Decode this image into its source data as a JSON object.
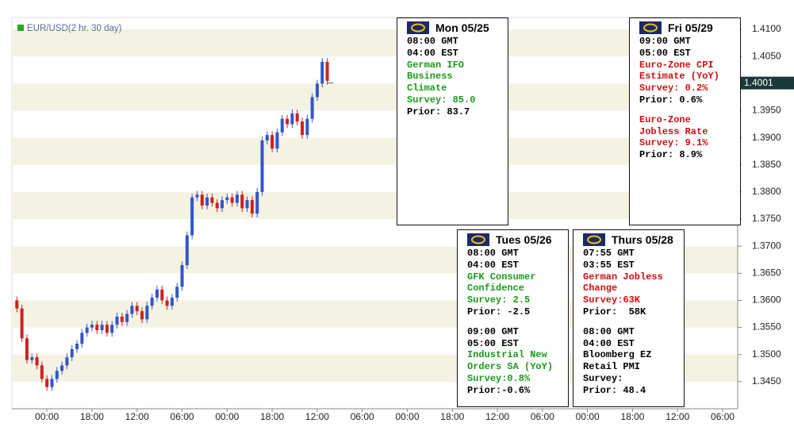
{
  "chart_data": {
    "type": "candlestick",
    "legend": "EUR/USD(2 hr. 30 day)",
    "legend_color": "#22aa22",
    "up_color": "#3355cc",
    "down_color": "#cc2222",
    "band_color": "#f4f2e2",
    "open": [
      1.36,
      1.3585,
      1.353,
      1.349,
      1.3495,
      1.348,
      1.3455,
      1.344,
      1.3455,
      1.347,
      1.348,
      1.3495,
      1.351,
      1.352,
      1.354,
      1.355,
      1.3555,
      1.3545,
      1.3555,
      1.354,
      1.3555,
      1.357,
      1.356,
      1.3575,
      1.359,
      1.358,
      1.3565,
      1.359,
      1.3605,
      1.362,
      1.36,
      1.359,
      1.3605,
      1.3625,
      1.3665,
      1.372,
      1.379,
      1.3795,
      1.3775,
      1.379,
      1.378,
      1.377,
      1.3785,
      1.379,
      1.378,
      1.3795,
      1.377,
      1.3785,
      1.376,
      1.38,
      1.3895,
      1.3905,
      1.388,
      1.391,
      1.3935,
      1.3925,
      1.3945,
      1.393,
      1.3905,
      1.3935,
      1.3975,
      1.4,
      1.404
    ],
    "high": [
      1.3607,
      1.3592,
      1.3537,
      1.3502,
      1.3502,
      1.3487,
      1.3462,
      1.3462,
      1.3477,
      1.3487,
      1.3502,
      1.3517,
      1.3527,
      1.3547,
      1.3557,
      1.3562,
      1.3562,
      1.3562,
      1.3562,
      1.3562,
      1.3577,
      1.3577,
      1.3582,
      1.3597,
      1.3597,
      1.3587,
      1.3597,
      1.3612,
      1.3627,
      1.3627,
      1.3607,
      1.3612,
      1.3632,
      1.3672,
      1.3727,
      1.3797,
      1.3802,
      1.3802,
      1.3797,
      1.3797,
      1.3787,
      1.3792,
      1.3797,
      1.3797,
      1.3802,
      1.3802,
      1.3792,
      1.3792,
      1.3807,
      1.3902,
      1.3912,
      1.3912,
      1.3917,
      1.3942,
      1.3942,
      1.3952,
      1.3952,
      1.3937,
      1.3942,
      1.3982,
      1.4007,
      1.4047,
      1.4047
    ],
    "low": [
      1.3578,
      1.3523,
      1.3483,
      1.3483,
      1.3473,
      1.3448,
      1.3433,
      1.3433,
      1.3448,
      1.3463,
      1.3473,
      1.3488,
      1.3503,
      1.3513,
      1.3533,
      1.3543,
      1.3538,
      1.3538,
      1.3533,
      1.3533,
      1.3548,
      1.3553,
      1.3553,
      1.3568,
      1.3573,
      1.3558,
      1.3558,
      1.3583,
      1.3598,
      1.3593,
      1.3583,
      1.3583,
      1.3598,
      1.3618,
      1.3658,
      1.3713,
      1.3783,
      1.3768,
      1.3768,
      1.3773,
      1.3763,
      1.3763,
      1.3778,
      1.3773,
      1.3773,
      1.3763,
      1.3763,
      1.3753,
      1.3753,
      1.3793,
      1.3888,
      1.3873,
      1.3873,
      1.3903,
      1.3918,
      1.3918,
      1.3923,
      1.3898,
      1.3898,
      1.3928,
      1.3968,
      1.3993,
      1.3998
    ],
    "close": [
      1.3585,
      1.353,
      1.349,
      1.3495,
      1.348,
      1.3455,
      1.344,
      1.3455,
      1.347,
      1.348,
      1.3495,
      1.351,
      1.352,
      1.354,
      1.355,
      1.3555,
      1.3545,
      1.3555,
      1.354,
      1.3555,
      1.357,
      1.356,
      1.3575,
      1.359,
      1.358,
      1.3565,
      1.359,
      1.3605,
      1.362,
      1.36,
      1.359,
      1.3605,
      1.3625,
      1.3665,
      1.372,
      1.379,
      1.3795,
      1.3775,
      1.379,
      1.378,
      1.377,
      1.3785,
      1.379,
      1.378,
      1.3795,
      1.377,
      1.3785,
      1.376,
      1.38,
      1.3895,
      1.3905,
      1.388,
      1.391,
      1.3935,
      1.3925,
      1.3945,
      1.393,
      1.3905,
      1.3935,
      1.3975,
      1.4,
      1.404,
      1.4005
    ],
    "last_price": 1.4001,
    "xlim": [
      -1,
      144
    ],
    "xticks": [
      {
        "value": 6,
        "label": "00:00"
      },
      {
        "value": 15,
        "label": "18:00"
      },
      {
        "value": 24,
        "label": "12:00"
      },
      {
        "value": 33,
        "label": "06:00"
      },
      {
        "value": 42,
        "label": "00:00"
      },
      {
        "value": 51,
        "label": "18:00"
      },
      {
        "value": 60,
        "label": "12:00"
      },
      {
        "value": 69,
        "label": "06:00"
      },
      {
        "value": 78,
        "label": "00:00"
      },
      {
        "value": 87,
        "label": "18:00"
      },
      {
        "value": 96,
        "label": "12:00"
      },
      {
        "value": 105,
        "label": "06:00"
      },
      {
        "value": 114,
        "label": "00:00"
      },
      {
        "value": 123,
        "label": "18:00"
      },
      {
        "value": 132,
        "label": "12:00"
      },
      {
        "value": 141,
        "label": "06:00"
      }
    ],
    "ylim": [
      1.34,
      1.4122
    ],
    "yticks": [
      {
        "value": 1.41,
        "label": "1.4100"
      },
      {
        "value": 1.405,
        "label": "1.4050"
      },
      {
        "value": 1.4,
        "label": "1.4000"
      },
      {
        "value": 1.395,
        "label": "1.3950"
      },
      {
        "value": 1.39,
        "label": "1.3900"
      },
      {
        "value": 1.385,
        "label": "1.3850"
      },
      {
        "value": 1.38,
        "label": "1.3800"
      },
      {
        "value": 1.375,
        "label": "1.3750"
      },
      {
        "value": 1.37,
        "label": "1.3700"
      },
      {
        "value": 1.365,
        "label": "1.3650"
      },
      {
        "value": 1.36,
        "label": "1.3600"
      },
      {
        "value": 1.355,
        "label": "1.3550"
      },
      {
        "value": 1.35,
        "label": "1.3500"
      },
      {
        "value": 1.345,
        "label": "1.3450"
      }
    ]
  },
  "events": [
    {
      "date": "Mon 05/25",
      "blocks": [
        [
          {
            "text": "08:00 GMT",
            "color": "#000000"
          },
          {
            "text": "04:00 EST",
            "color": "#000000"
          },
          {
            "text": "German IFO",
            "color": "#1a9a1a"
          },
          {
            "text": "Business",
            "color": "#1a9a1a"
          },
          {
            "text": "Climate",
            "color": "#1a9a1a"
          },
          {
            "text": "Survey: 85.0",
            "color": "#1a9a1a"
          },
          {
            "text": "Prior: 83.7",
            "color": "#000000"
          }
        ]
      ]
    },
    {
      "date": "Fri 05/29",
      "blocks": [
        [
          {
            "text": "09:00 GMT",
            "color": "#000000"
          },
          {
            "text": "05:00 EST",
            "color": "#000000"
          },
          {
            "text": "Euro-Zone CPI",
            "color": "#cc1111"
          },
          {
            "text": "Estimate (YoY)",
            "color": "#cc1111"
          },
          {
            "text": "Survey: 0.2%",
            "color": "#cc1111"
          },
          {
            "text": "Prior: 0.6%",
            "color": "#000000"
          }
        ],
        [
          {
            "text": "Euro-Zone",
            "color": "#cc1111"
          },
          {
            "text": "Jobless Rate",
            "color": "#cc1111"
          },
          {
            "text": "Survey: 9.1%",
            "color": "#cc1111"
          },
          {
            "text": "Prior: 8.9%",
            "color": "#000000"
          }
        ]
      ]
    },
    {
      "date": "Tues 05/26",
      "blocks": [
        [
          {
            "text": "08:00 GMT",
            "color": "#000000"
          },
          {
            "text": "04:00 EST",
            "color": "#000000"
          },
          {
            "text": "GFK Consumer",
            "color": "#1a9a1a"
          },
          {
            "text": "Confidence",
            "color": "#1a9a1a"
          },
          {
            "text": "Survey: 2.5",
            "color": "#1a9a1a"
          },
          {
            "text": "Prior: -2.5",
            "color": "#000000"
          }
        ],
        [
          {
            "text": "09:00 GMT",
            "color": "#000000"
          },
          {
            "text": "05:00 EST",
            "color": "#000000"
          },
          {
            "text": "Industrial New",
            "color": "#1a9a1a"
          },
          {
            "text": "Orders SA (YoY)",
            "color": "#1a9a1a"
          },
          {
            "text": "Survey:0.8%",
            "color": "#1a9a1a"
          },
          {
            "text": "Prior:-0.6%",
            "color": "#000000"
          }
        ]
      ]
    },
    {
      "date": "Thurs 05/28",
      "blocks": [
        [
          {
            "text": "07:55 GMT",
            "color": "#000000"
          },
          {
            "text": "03:55 EST",
            "color": "#000000"
          },
          {
            "text": "German Jobless",
            "color": "#cc1111"
          },
          {
            "text": "Change",
            "color": "#cc1111"
          },
          {
            "text": "Survey:63K",
            "color": "#cc1111"
          },
          {
            "text": "Prior:  58K",
            "color": "#000000"
          }
        ],
        [
          {
            "text": "08:00 GMT",
            "color": "#000000"
          },
          {
            "text": "04:00 EST",
            "color": "#000000"
          },
          {
            "text": "Bloomberg EZ",
            "color": "#000000"
          },
          {
            "text": "Retail PMI",
            "color": "#000000"
          },
          {
            "text": "Survey:",
            "color": "#000000"
          },
          {
            "text": "Prior: 48.4",
            "color": "#000000"
          }
        ]
      ]
    }
  ]
}
